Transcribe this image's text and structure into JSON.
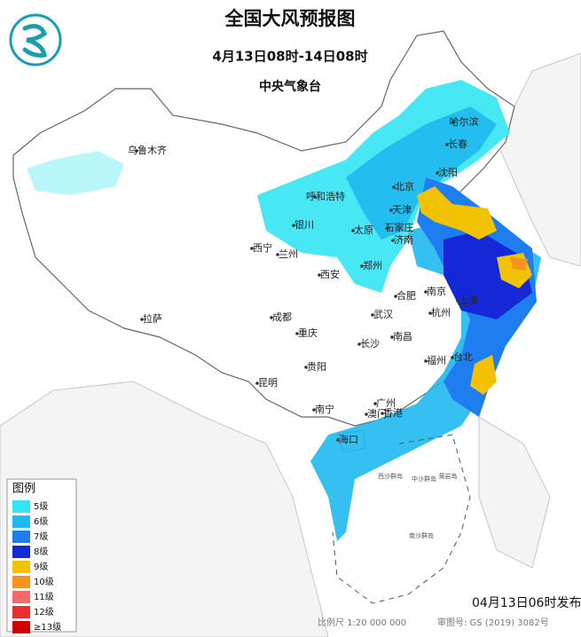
{
  "header": {
    "title": "全国大风预报图",
    "subtitle": "4月13日08时-14日08时",
    "issuer": "中央气象台"
  },
  "legend": {
    "title": "图例",
    "items": [
      {
        "label": "5级",
        "color": "#33e4f2"
      },
      {
        "label": "6级",
        "color": "#20b8f0"
      },
      {
        "label": "7级",
        "color": "#1e7ef0"
      },
      {
        "label": "8级",
        "color": "#1428d8"
      },
      {
        "label": "9级",
        "color": "#f2c200"
      },
      {
        "label": "10级",
        "color": "#f79320"
      },
      {
        "label": "11级",
        "color": "#f46a6a"
      },
      {
        "label": "12级",
        "color": "#e83030"
      },
      {
        "label": "≥13级",
        "color": "#d00000"
      }
    ]
  },
  "cities": [
    "乌鲁木齐",
    "哈尔滨",
    "长春",
    "沈阳",
    "呼和浩特",
    "北京",
    "天津",
    "银川",
    "太原",
    "石家庄",
    "济南",
    "西宁",
    "兰州",
    "郑州",
    "西安",
    "合肥",
    "南京",
    "上海",
    "成都",
    "武汉",
    "杭州",
    "拉萨",
    "重庆",
    "长沙",
    "南昌",
    "贵阳",
    "福州",
    "台北",
    "昆明",
    "南宁",
    "广州",
    "澳门",
    "香港",
    "海口"
  ],
  "islands": [
    "西沙群岛",
    "中沙群岛",
    "黄岩岛",
    "南沙群岛"
  ],
  "footer": {
    "issued": "04月13日06时发布",
    "scale": "比例尺 1:20 000 000",
    "map_number": "审图号: GS (2019) 3082号"
  }
}
